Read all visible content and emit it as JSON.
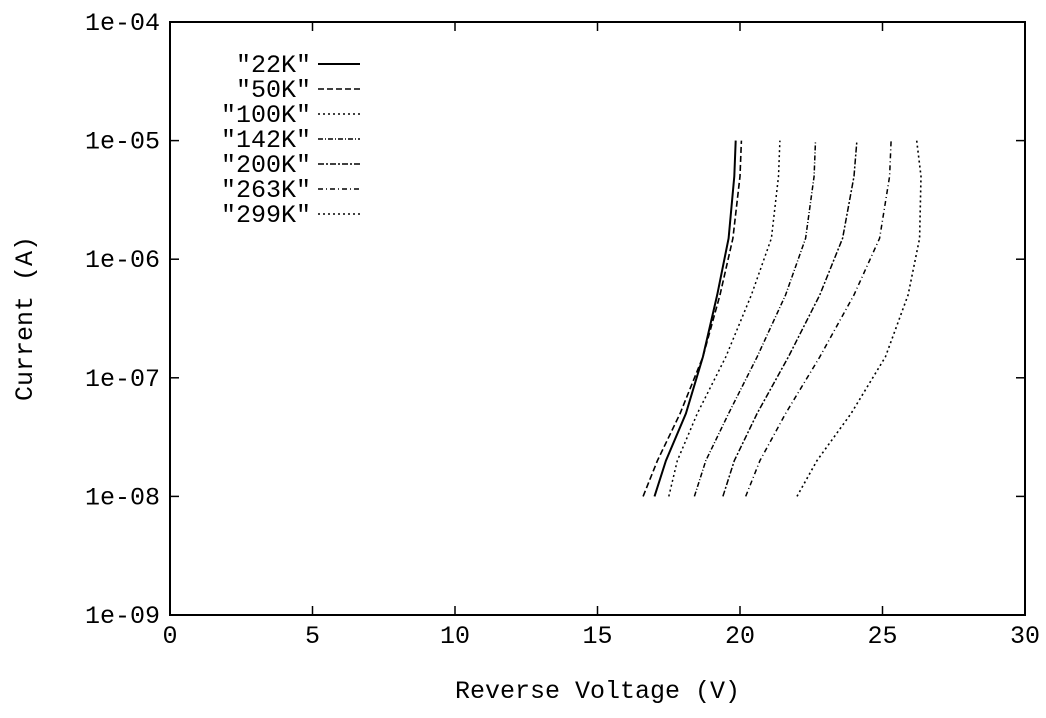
{
  "chart_data": {
    "type": "line",
    "title": "",
    "xlabel": "Reverse Voltage (V)",
    "ylabel": "Current (A)",
    "xlim": [
      0,
      30
    ],
    "ylim": [
      1e-09,
      0.0001
    ],
    "yscale": "log",
    "grid": false,
    "legend_position": "top-left",
    "x_ticks": [
      0,
      5,
      10,
      15,
      20,
      25,
      30
    ],
    "x_tick_labels": [
      "0",
      "5",
      "10",
      "15",
      "20",
      "25",
      "30"
    ],
    "y_ticks": [
      1e-09,
      1e-08,
      1e-07,
      1e-06,
      1e-05,
      0.0001
    ],
    "y_tick_labels": [
      "1e-09",
      "1e-08",
      "1e-07",
      "1e-06",
      "1e-05",
      "1e-04"
    ],
    "series": [
      {
        "name": "\"22K\"",
        "x": [
          17.0,
          17.4,
          18.1,
          18.7,
          19.2,
          19.6,
          19.8,
          19.85
        ],
        "y": [
          1e-08,
          2e-08,
          5e-08,
          1.5e-07,
          5e-07,
          1.5e-06,
          5e-06,
          1e-05
        ]
      },
      {
        "name": "\"50K\"",
        "x": [
          16.6,
          17.1,
          17.9,
          18.7,
          19.3,
          19.75,
          20.0,
          20.05
        ],
        "y": [
          1e-08,
          2e-08,
          5e-08,
          1.5e-07,
          5e-07,
          1.5e-06,
          5e-06,
          1e-05
        ]
      },
      {
        "name": "\"100K\"",
        "x": [
          17.5,
          17.8,
          18.5,
          19.5,
          20.4,
          21.1,
          21.35,
          21.4
        ],
        "y": [
          1e-08,
          2e-08,
          5e-08,
          1.5e-07,
          5e-07,
          1.5e-06,
          5e-06,
          1e-05
        ]
      },
      {
        "name": "\"142K\"",
        "x": [
          18.4,
          18.8,
          19.6,
          20.6,
          21.6,
          22.3,
          22.6,
          22.65
        ],
        "y": [
          1e-08,
          2e-08,
          5e-08,
          1.5e-07,
          5e-07,
          1.5e-06,
          5e-06,
          1e-05
        ]
      },
      {
        "name": "\"200K\"",
        "x": [
          19.4,
          19.8,
          20.6,
          21.7,
          22.8,
          23.6,
          24.0,
          24.1
        ],
        "y": [
          1e-08,
          2e-08,
          5e-08,
          1.5e-07,
          5e-07,
          1.5e-06,
          5e-06,
          1e-05
        ]
      },
      {
        "name": "\"263K\"",
        "x": [
          20.2,
          20.7,
          21.6,
          22.8,
          24.0,
          24.9,
          25.25,
          25.3
        ],
        "y": [
          1e-08,
          2e-08,
          5e-08,
          1.5e-07,
          5e-07,
          1.5e-06,
          5e-06,
          1e-05
        ]
      },
      {
        "name": "\"299K\"",
        "x": [
          22.0,
          22.7,
          23.9,
          25.1,
          25.9,
          26.3,
          26.35,
          26.2
        ],
        "y": [
          1e-08,
          2e-08,
          5e-08,
          1.5e-07,
          5e-07,
          1.5e-06,
          5e-06,
          1e-05
        ]
      }
    ]
  }
}
